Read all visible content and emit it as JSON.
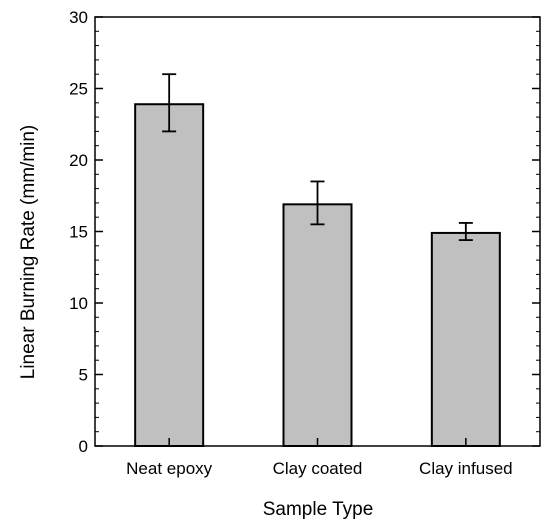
{
  "chart_data": {
    "type": "bar",
    "title": "",
    "xlabel": "Sample Type",
    "ylabel": "Linear Burning Rate (mm/min)",
    "categories": [
      "Neat epoxy",
      "Clay coated",
      "Clay infused"
    ],
    "values": [
      23.9,
      16.9,
      14.9
    ],
    "error_low": [
      22.0,
      15.5,
      14.4
    ],
    "error_high": [
      26.0,
      18.5,
      15.6
    ],
    "ylim": [
      0,
      30
    ],
    "yticks": [
      0,
      5,
      10,
      15,
      20,
      25,
      30
    ],
    "grid": false,
    "bar_color": "#c0c0c0",
    "edge_color": "#000000"
  }
}
